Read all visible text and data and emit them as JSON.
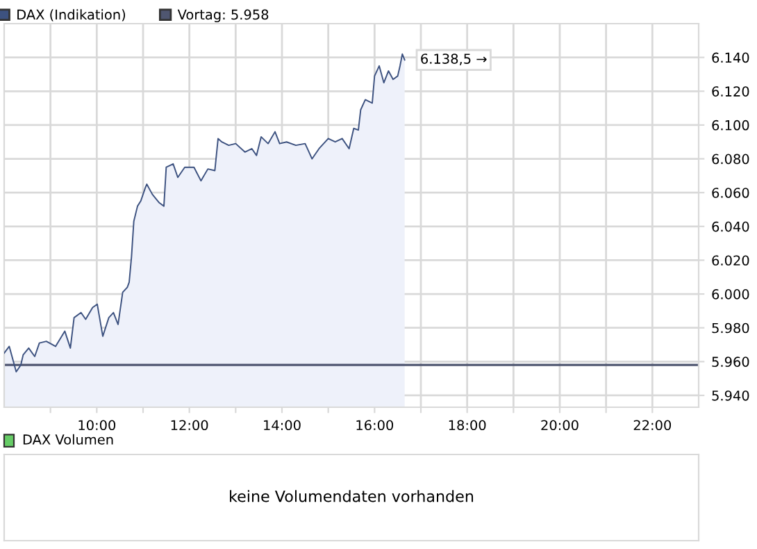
{
  "chart_data": [
    {
      "type": "area",
      "legend": "top left",
      "grid": true,
      "series": [
        {
          "name": "DAX (Indikation)",
          "color": "#3d5280",
          "x": [
            8.0,
            8.11,
            8.26,
            8.36,
            8.41,
            8.53,
            8.66,
            8.76,
            8.91,
            9.11,
            9.31,
            9.43,
            9.51,
            9.66,
            9.76,
            9.91,
            10.01,
            10.13,
            10.26,
            10.36,
            10.46,
            10.56,
            10.66,
            10.7,
            10.75,
            10.8,
            10.88,
            10.95,
            11.05,
            11.08,
            11.2,
            11.35,
            11.45,
            11.5,
            11.65,
            11.75,
            11.9,
            12.1,
            12.25,
            12.4,
            12.55,
            12.62,
            12.7,
            12.85,
            13.0,
            13.2,
            13.35,
            13.45,
            13.55,
            13.7,
            13.85,
            13.95,
            14.1,
            14.3,
            14.5,
            14.55,
            14.65,
            14.8,
            15.0,
            15.15,
            15.3,
            15.45,
            15.55,
            15.65,
            15.7,
            15.8,
            15.95,
            16.0,
            16.1,
            16.2,
            16.3,
            16.4,
            16.5,
            16.55,
            16.6,
            16.65
          ],
          "values": [
            5965,
            5969,
            5954,
            5958,
            5964,
            5968,
            5963,
            5971,
            5972,
            5969,
            5978,
            5968,
            5986,
            5989,
            5985,
            5992,
            5994,
            5975,
            5986,
            5989,
            5982,
            6001,
            6004,
            6007,
            6022,
            6043,
            6052,
            6055,
            6063,
            6065,
            6059,
            6054,
            6052,
            6075,
            6077,
            6069,
            6075,
            6075,
            6067,
            6074,
            6073,
            6092,
            6090,
            6088,
            6089,
            6084,
            6086,
            6082,
            6093,
            6089,
            6096,
            6089,
            6090,
            6088,
            6089,
            6086,
            6080,
            6086,
            6092,
            6090,
            6092,
            6086,
            6098,
            6097,
            6109,
            6115,
            6113,
            6129,
            6135,
            6125,
            6132,
            6127,
            6129,
            6135,
            6142,
            6138.5
          ]
        }
      ],
      "annotations": [
        {
          "text": "6.138,5 →",
          "x": 16.65,
          "y": 6138.5
        }
      ],
      "ref_lines": [
        {
          "axis": "y",
          "value": 5958,
          "label": "Vortag: 5.958",
          "color": "#4f5670"
        }
      ],
      "xlim": [
        8,
        23
      ],
      "xticks": [
        {
          "value": 9,
          "label": null
        },
        {
          "value": 10,
          "label": "10:00"
        },
        {
          "value": 11,
          "label": null
        },
        {
          "value": 12,
          "label": "12:00"
        },
        {
          "value": 13,
          "label": null
        },
        {
          "value": 14,
          "label": "14:00"
        },
        {
          "value": 15,
          "label": null
        },
        {
          "value": 16,
          "label": "16:00"
        },
        {
          "value": 17,
          "label": null
        },
        {
          "value": 18,
          "label": "18:00"
        },
        {
          "value": 19,
          "label": null
        },
        {
          "value": 20,
          "label": "20:00"
        },
        {
          "value": 21,
          "label": null
        },
        {
          "value": 22,
          "label": "22:00"
        }
      ],
      "ylim": [
        5933,
        6160
      ],
      "yticks": [
        {
          "value": 5940,
          "label": "5.940"
        },
        {
          "value": 5960,
          "label": "5.960"
        },
        {
          "value": 5980,
          "label": "5.980"
        },
        {
          "value": 6000,
          "label": "6.000"
        },
        {
          "value": 6020,
          "label": "6.020"
        },
        {
          "value": 6040,
          "label": "6.040"
        },
        {
          "value": 6060,
          "label": "6.060"
        },
        {
          "value": 6080,
          "label": "6.080"
        },
        {
          "value": 6100,
          "label": "6.100"
        },
        {
          "value": 6120,
          "label": "6.120"
        },
        {
          "value": 6140,
          "label": "6.140"
        }
      ]
    },
    {
      "type": "other",
      "title": "DAX Volumen",
      "annotations": [
        "keine Volumendaten vorhanden"
      ]
    }
  ]
}
